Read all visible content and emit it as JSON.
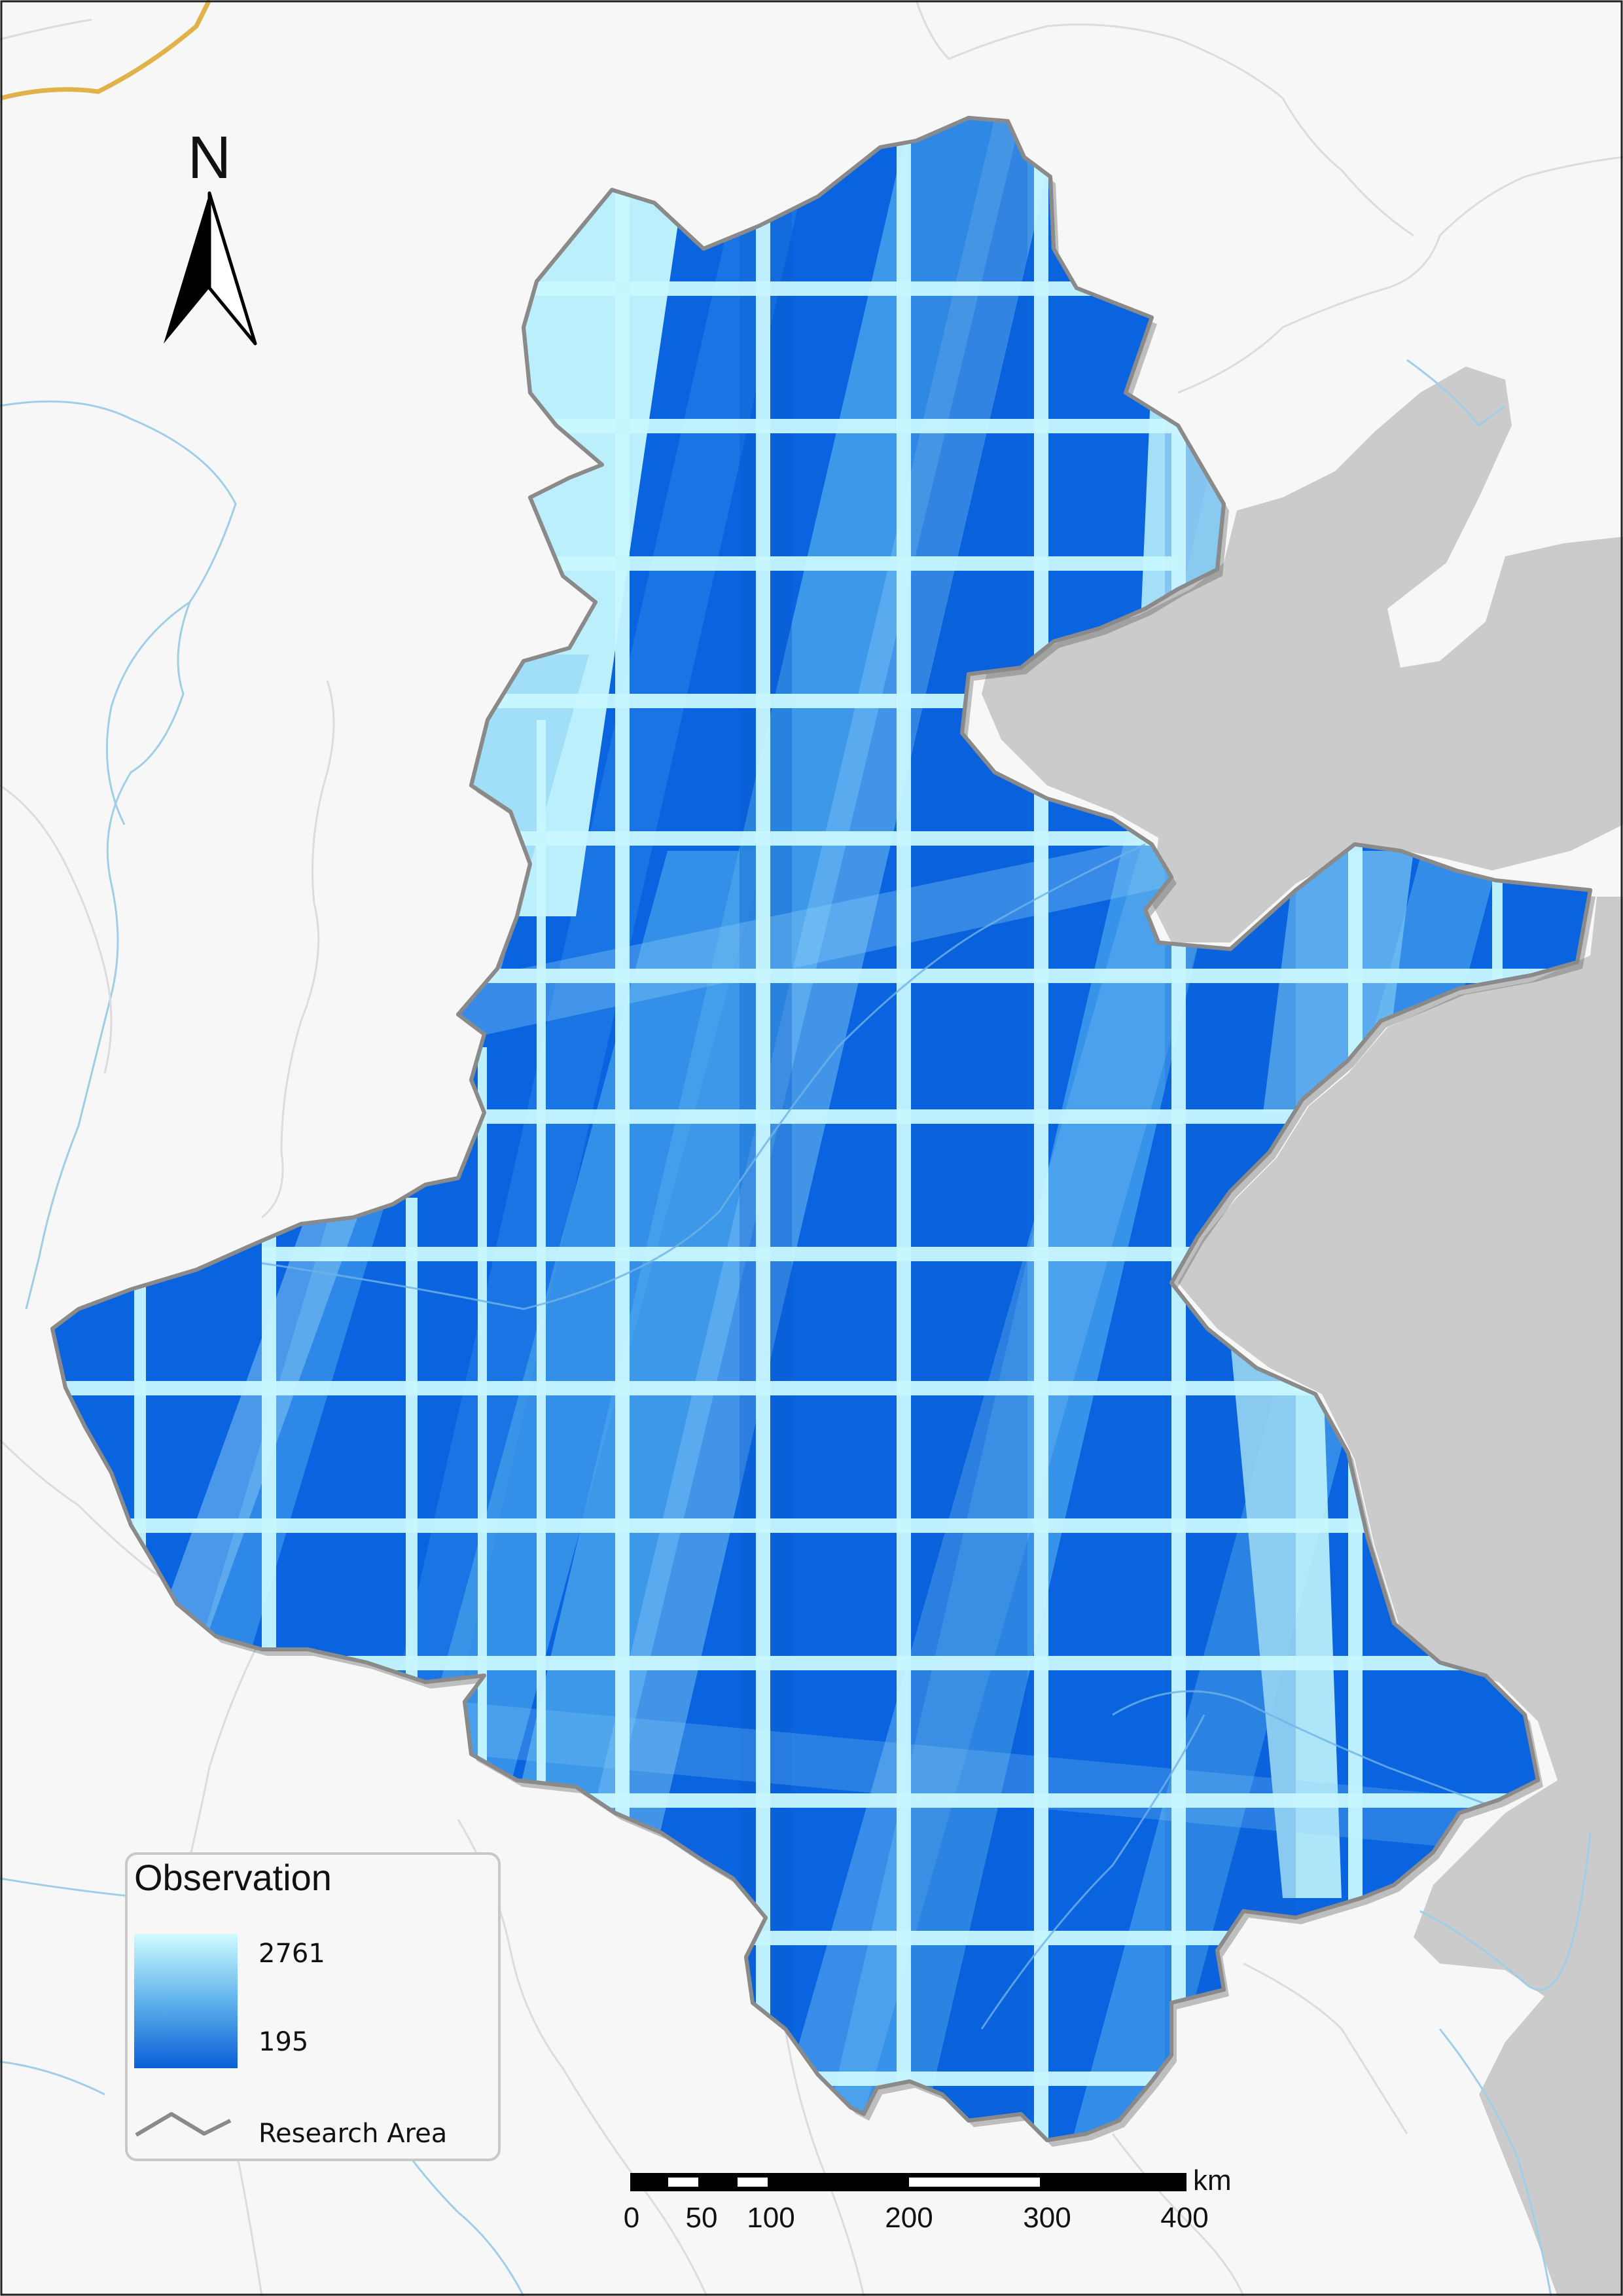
{
  "north_arrow": {
    "label": "N"
  },
  "legend": {
    "title": "Observation",
    "max_label": "2761",
    "min_label": "195",
    "boundary_label": "Research Area",
    "ramp_colors": [
      "#cffbff",
      "#0a5fd6"
    ]
  },
  "scale_bar": {
    "unit": "km",
    "ticks": [
      "0",
      "50",
      "100",
      "200",
      "300",
      "400"
    ]
  },
  "colors": {
    "sea": "#cbcbcb",
    "land": "#f7f7f7",
    "rivers": "#9ecfe6",
    "boundaries": "#dedede",
    "research_outline": "#8a8a8a"
  }
}
